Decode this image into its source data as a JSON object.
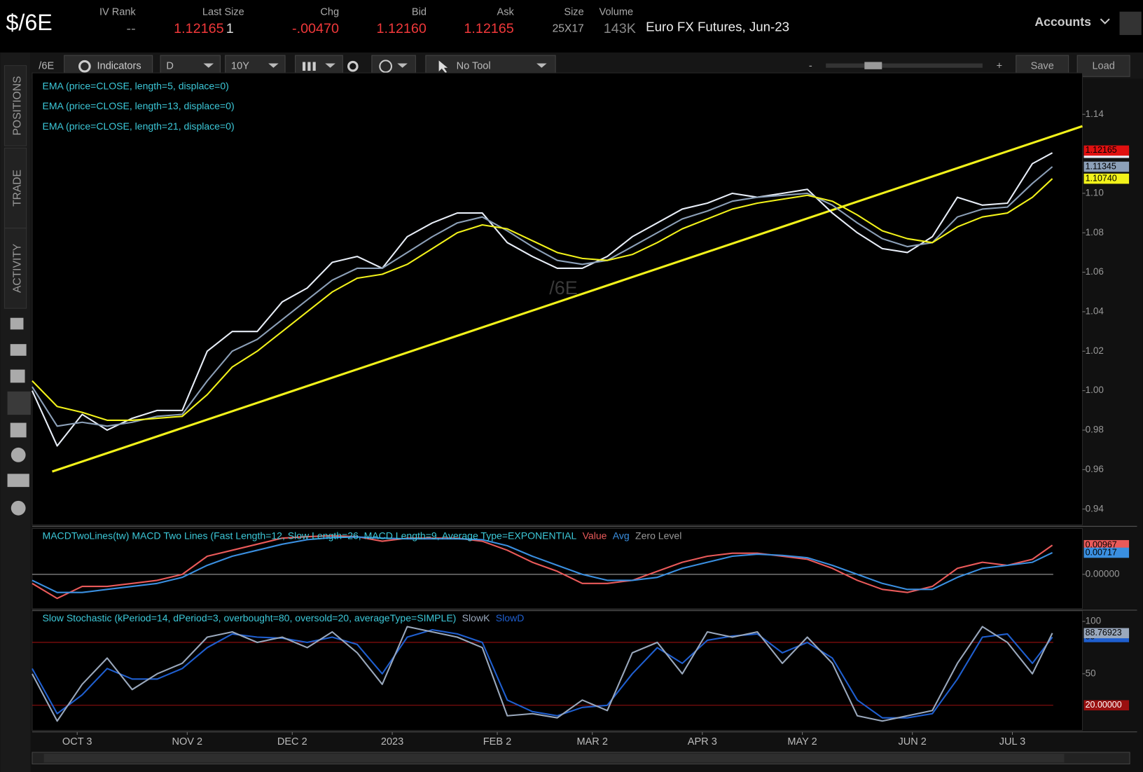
{
  "header": {
    "symbol": "$/6E",
    "columns": [
      {
        "label": "IV Rank",
        "value": "--"
      },
      {
        "label": "Last Size",
        "value": "1.12165",
        "size": "1"
      },
      {
        "label": "Chg",
        "value": "-.00470"
      },
      {
        "label": "Bid",
        "value": "1.12160"
      },
      {
        "label": "Ask",
        "value": "1.12165"
      },
      {
        "label": "Size",
        "value": "25X17"
      },
      {
        "label": "Volume",
        "value": "143K"
      }
    ],
    "description": "Euro FX Futures, Jun-23",
    "accounts": "Accounts"
  },
  "sidebar": {
    "tabs": [
      "POSITIONS",
      "TRADE",
      "ACTIVITY"
    ]
  },
  "toolbar": {
    "symbol": "/6E",
    "indicators": "Indicators",
    "aggregation": "D",
    "period": "10Y",
    "tool": "No Tool",
    "zoom_out": "-",
    "zoom_in": "+",
    "save": "Save",
    "load": "Load"
  },
  "chart_data": [
    {
      "type": "line",
      "watermark": "/6E",
      "last_price": 1.12165,
      "x": [
        0,
        5,
        10,
        15,
        20,
        25,
        30,
        35,
        40,
        45,
        50,
        55,
        60,
        65,
        70,
        75,
        80,
        85,
        90,
        95,
        100,
        105,
        110,
        115,
        120,
        125,
        130,
        135,
        140,
        145,
        150,
        155,
        160,
        165,
        170,
        175,
        180,
        185,
        190,
        195,
        200,
        204
      ],
      "xlim": [
        0,
        210
      ],
      "ylim": [
        0.932,
        1.161
      ],
      "yticks": [
        0.94,
        0.96,
        0.98,
        {
          "value": 1,
          "label": "1.00"
        },
        1.02,
        1.04,
        1.06,
        1.08,
        {
          "value": 1.1,
          "label": "1.10"
        },
        1.14
      ],
      "xticks": [
        {
          "value": 9,
          "label": "OCT 3"
        },
        {
          "value": 31,
          "label": "NOV 2"
        },
        {
          "value": 52,
          "label": "DEC 2"
        },
        {
          "value": 72,
          "label": "2023"
        },
        {
          "value": 93,
          "label": "FEB 2"
        },
        {
          "value": 112,
          "label": "MAR 2"
        },
        {
          "value": 134,
          "label": "APR 3"
        },
        {
          "value": 154,
          "label": "MAY 2"
        },
        {
          "value": 176,
          "label": "JUN 2"
        },
        {
          "value": 196,
          "label": "JUL 3"
        }
      ],
      "trendline": {
        "color": "#f2f21a",
        "x": [
          4,
          210
        ],
        "y": [
          0.959,
          1.134
        ]
      },
      "series": [
        {
          "name": "EMA (price=CLOSE, length=5, displace=0)",
          "color": "#e8eef8",
          "values": [
            1.0,
            0.972,
            0.988,
            0.98,
            0.986,
            0.99,
            0.99,
            1.02,
            1.03,
            1.03,
            1.045,
            1.052,
            1.065,
            1.068,
            1.062,
            1.078,
            1.085,
            1.09,
            1.09,
            1.075,
            1.068,
            1.062,
            1.062,
            1.068,
            1.078,
            1.085,
            1.092,
            1.095,
            1.1,
            1.098,
            1.1,
            1.102,
            1.09,
            1.08,
            1.072,
            1.07,
            1.078,
            1.098,
            1.094,
            1.095,
            1.115,
            1.1205
          ]
        },
        {
          "name": "EMA (price=CLOSE, length=13, displace=0)",
          "color": "#8ca0b8",
          "values": [
            1.002,
            0.982,
            0.984,
            0.982,
            0.984,
            0.987,
            0.988,
            1.005,
            1.02,
            1.026,
            1.036,
            1.046,
            1.056,
            1.062,
            1.062,
            1.07,
            1.078,
            1.085,
            1.088,
            1.081,
            1.073,
            1.066,
            1.064,
            1.066,
            1.073,
            1.08,
            1.087,
            1.091,
            1.096,
            1.098,
            1.099,
            1.1,
            1.094,
            1.085,
            1.077,
            1.073,
            1.075,
            1.088,
            1.092,
            1.093,
            1.105,
            1.11345
          ]
        },
        {
          "name": "EMA (price=CLOSE, length=21, displace=0)",
          "color": "#f2f21a",
          "values": [
            1.005,
            0.992,
            0.989,
            0.985,
            0.985,
            0.986,
            0.987,
            0.998,
            1.012,
            1.02,
            1.03,
            1.04,
            1.05,
            1.057,
            1.059,
            1.064,
            1.072,
            1.08,
            1.084,
            1.082,
            1.076,
            1.07,
            1.067,
            1.066,
            1.069,
            1.075,
            1.082,
            1.087,
            1.092,
            1.095,
            1.097,
            1.099,
            1.096,
            1.089,
            1.081,
            1.077,
            1.075,
            1.083,
            1.088,
            1.09,
            1.098,
            1.1074
          ],
          "value_labels": [
            null,
            null,
            null,
            null,
            null,
            null,
            null,
            null,
            null,
            null,
            null,
            null,
            null,
            null,
            null,
            null,
            null,
            null,
            null,
            null,
            null,
            null,
            null,
            null,
            null,
            null,
            null,
            null,
            null,
            null,
            null,
            null,
            null,
            null,
            null,
            null,
            null,
            null,
            null,
            null,
            null,
            "1.10740"
          ]
        }
      ]
    },
    {
      "type": "line",
      "title": "MACDTwoLines(tw) MACD Two Lines (Fast Length=12, Slow Length=26, MACD Length=9, Average Type=EXPONENTIAL",
      "x": [
        0,
        5,
        10,
        15,
        20,
        25,
        30,
        35,
        40,
        45,
        50,
        55,
        60,
        65,
        70,
        75,
        80,
        85,
        90,
        95,
        100,
        105,
        110,
        115,
        120,
        125,
        130,
        135,
        140,
        145,
        150,
        155,
        160,
        165,
        170,
        175,
        180,
        185,
        190,
        195,
        200,
        204
      ],
      "xlim": [
        0,
        210
      ],
      "ylim": [
        -0.0114,
        0.0152
      ],
      "yticks": [
        {
          "value": 0,
          "label": "0.00000"
        }
      ],
      "hlines": [
        {
          "name": "Zero Level",
          "value": 0,
          "color": "#b0b0b0"
        }
      ],
      "series": [
        {
          "name": "Value",
          "color": "#ea5a5a",
          "values": [
            -0.003,
            -0.008,
            -0.004,
            -0.004,
            -0.003,
            -0.002,
            0.0,
            0.006,
            0.008,
            0.01,
            0.012,
            0.0125,
            0.0128,
            0.0125,
            0.011,
            0.012,
            0.012,
            0.012,
            0.011,
            0.008,
            0.004,
            0.001,
            -0.003,
            -0.003,
            -0.002,
            0.001,
            0.004,
            0.006,
            0.007,
            0.007,
            0.006,
            0.005,
            0.002,
            -0.002,
            -0.005,
            -0.006,
            -0.004,
            0.002,
            0.004,
            0.003,
            0.005,
            0.00967
          ]
        },
        {
          "name": "Avg",
          "color": "#3a8fe0",
          "values": [
            -0.002,
            -0.006,
            -0.006,
            -0.005,
            -0.004,
            -0.003,
            -0.001,
            0.003,
            0.006,
            0.008,
            0.01,
            0.0115,
            0.0122,
            0.0124,
            0.012,
            0.0118,
            0.0118,
            0.0118,
            0.0115,
            0.0095,
            0.006,
            0.003,
            0.0,
            -0.002,
            -0.002,
            -0.001,
            0.002,
            0.004,
            0.006,
            0.0067,
            0.0063,
            0.0055,
            0.003,
            0.0,
            -0.003,
            -0.005,
            -0.005,
            -0.001,
            0.002,
            0.003,
            0.004,
            0.00717
          ]
        }
      ]
    },
    {
      "type": "line",
      "title": "Slow Stochastic (kPeriod=14, dPeriod=3, overbought=80, oversold=20, averageType=SIMPLE)",
      "x": [
        0,
        5,
        10,
        15,
        20,
        25,
        30,
        35,
        40,
        45,
        50,
        55,
        60,
        65,
        70,
        75,
        80,
        85,
        90,
        95,
        100,
        105,
        110,
        115,
        120,
        125,
        130,
        135,
        140,
        145,
        150,
        155,
        160,
        165,
        170,
        175,
        180,
        185,
        190,
        195,
        200,
        204
      ],
      "xlim": [
        0,
        210
      ],
      "ylim": [
        -4,
        110
      ],
      "yticks": [
        50,
        100
      ],
      "hlines": [
        {
          "value": 80,
          "color": "#9a1010"
        },
        {
          "value": 20,
          "label": "20.00000",
          "color": "#9a1010"
        }
      ],
      "series": [
        {
          "name": "SlowD",
          "color": "#1f5fd0",
          "values": [
            55,
            12,
            30,
            55,
            45,
            45,
            55,
            75,
            88,
            85,
            84,
            80,
            85,
            78,
            50,
            85,
            92,
            88,
            80,
            25,
            14,
            10,
            18,
            20,
            50,
            75,
            60,
            82,
            86,
            88,
            70,
            80,
            65,
            25,
            8,
            8,
            12,
            45,
            85,
            88,
            60,
            85
          ]
        },
        {
          "name": "SlowK",
          "color": "#9aa8bc",
          "values": [
            50,
            5,
            40,
            65,
            35,
            50,
            60,
            85,
            90,
            80,
            85,
            75,
            90,
            70,
            40,
            95,
            90,
            85,
            75,
            10,
            12,
            8,
            25,
            15,
            70,
            80,
            50,
            90,
            85,
            90,
            60,
            85,
            60,
            10,
            5,
            10,
            15,
            60,
            95,
            80,
            50,
            88.76923
          ]
        }
      ]
    }
  ]
}
